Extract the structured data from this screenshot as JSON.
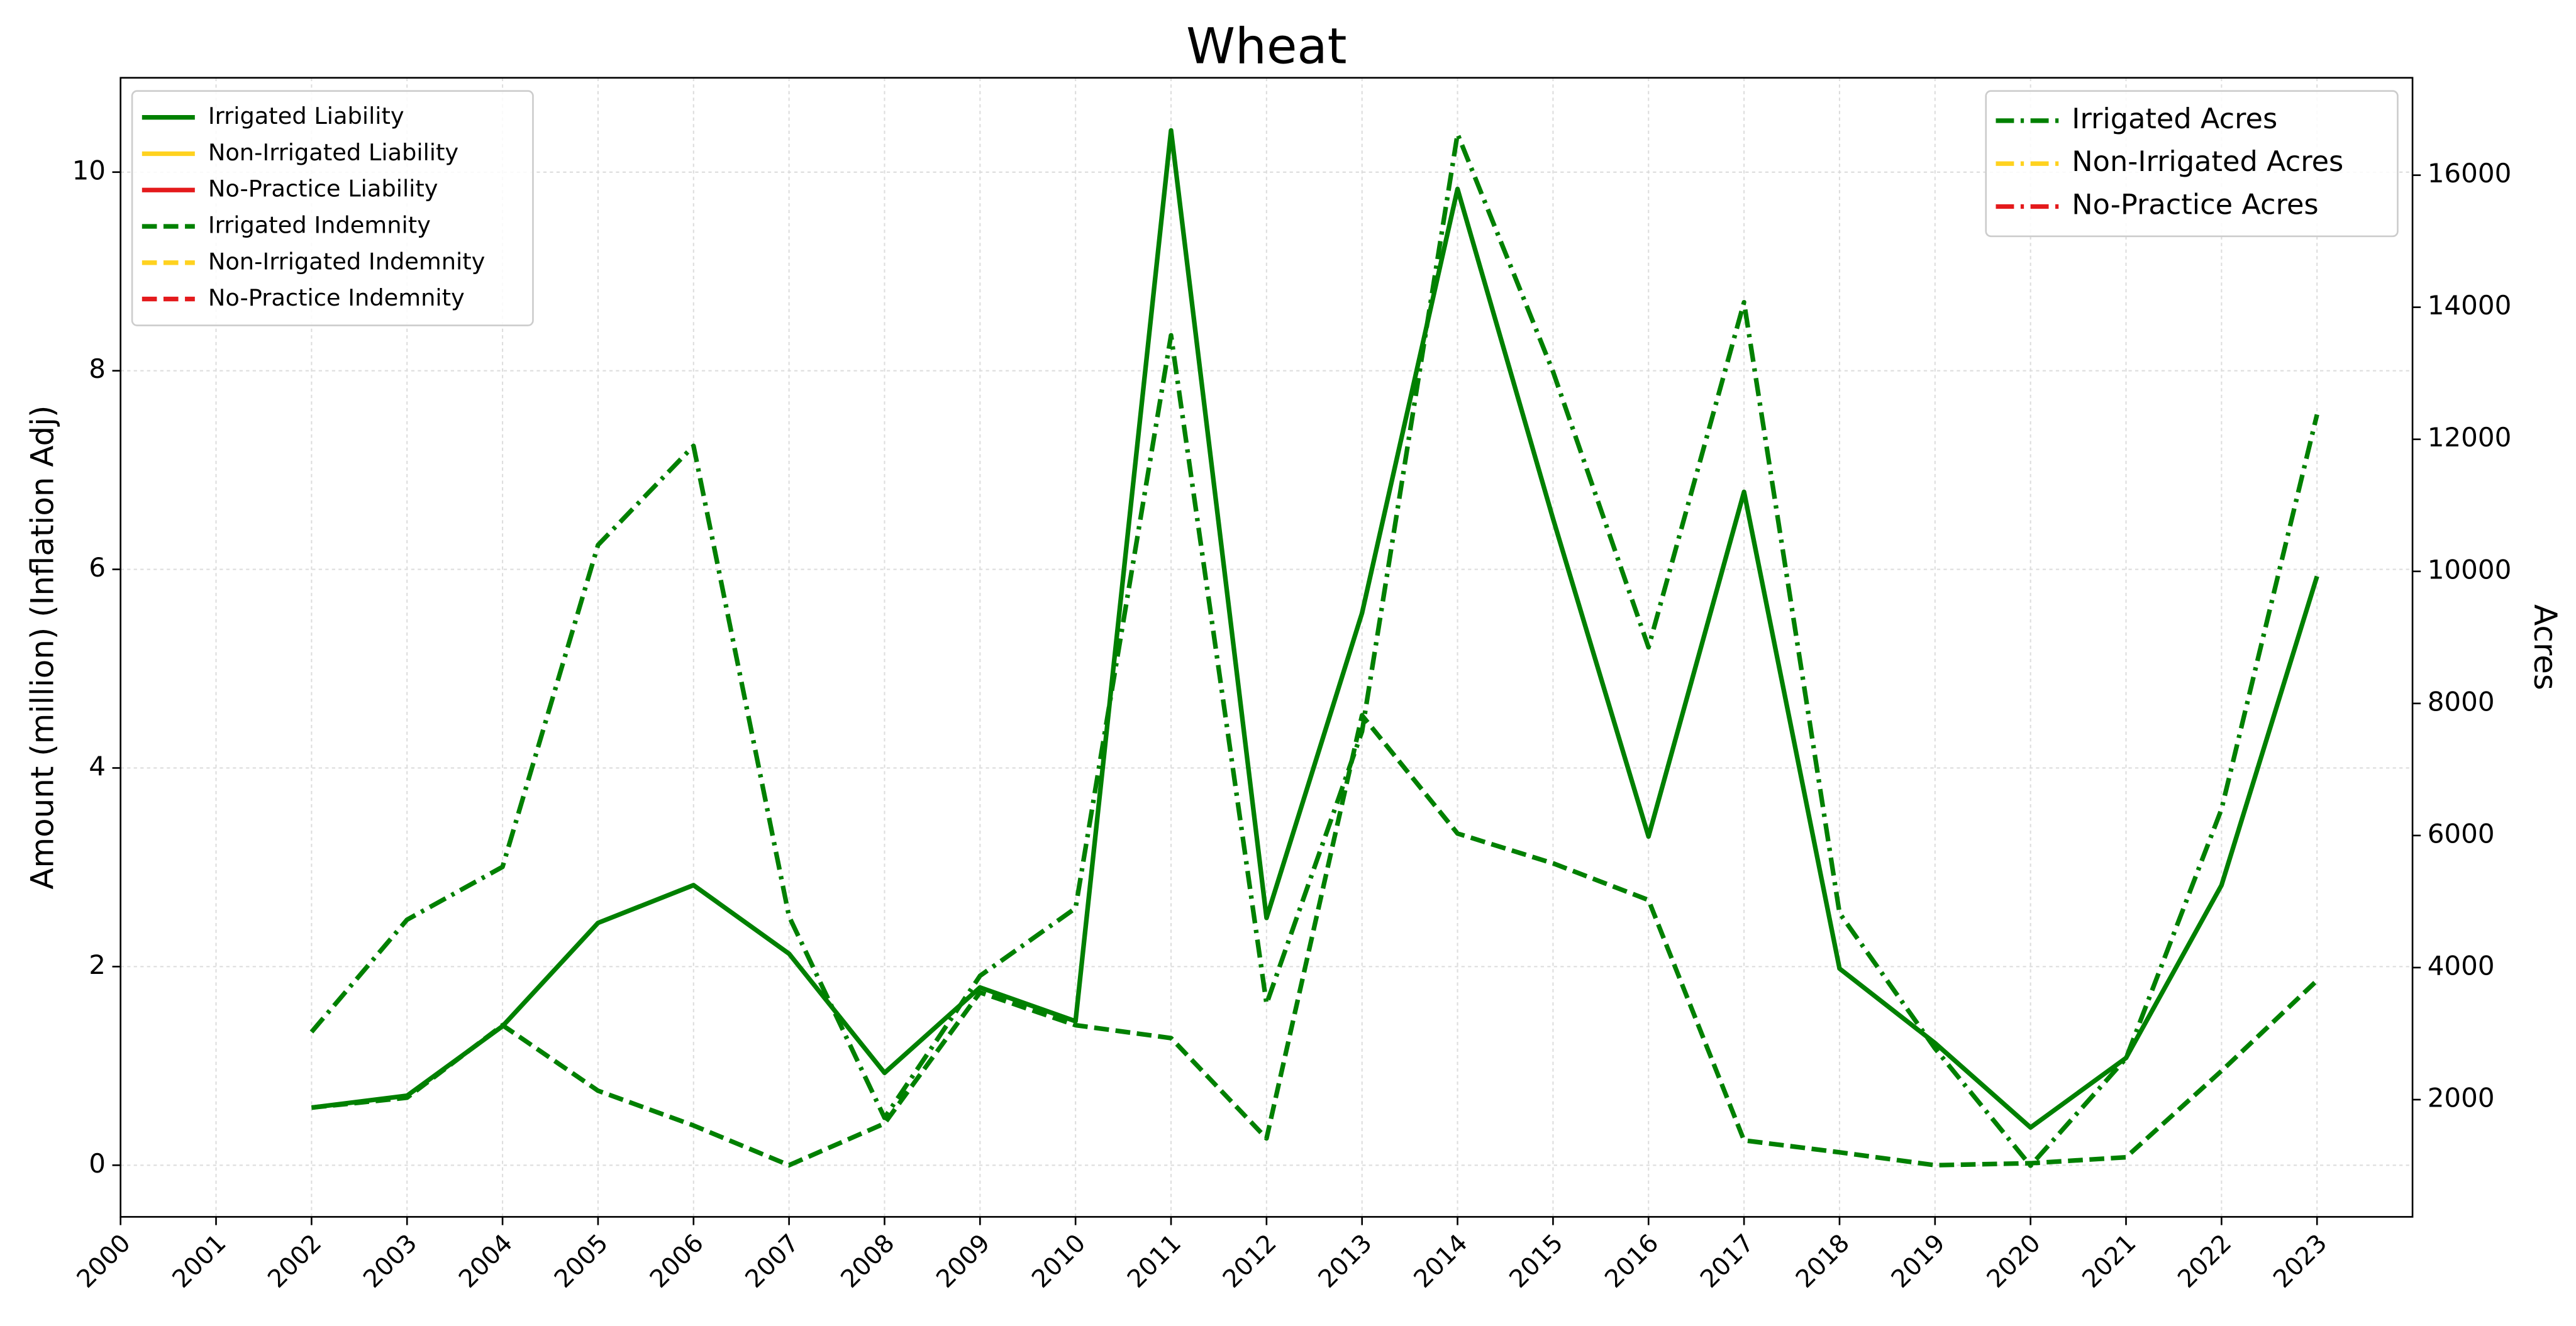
{
  "chart_data": {
    "type": "line",
    "title": "Wheat",
    "ylabel": "Amount (million) (Inflation Adj)",
    "y2label": "Acres",
    "x": [
      2002,
      2003,
      2004,
      2005,
      2006,
      2007,
      2008,
      2009,
      2010,
      2011,
      2012,
      2013,
      2014,
      2015,
      2016,
      2017,
      2018,
      2019,
      2020,
      2021,
      2022,
      2023
    ],
    "xlim": [
      2000,
      2024
    ],
    "xticks": [
      2000,
      2001,
      2002,
      2003,
      2004,
      2005,
      2006,
      2007,
      2008,
      2009,
      2010,
      2011,
      2012,
      2013,
      2014,
      2015,
      2016,
      2017,
      2018,
      2019,
      2020,
      2021,
      2022,
      2023
    ],
    "ylim": [
      -0.52,
      10.95
    ],
    "yticks": [
      0,
      2,
      4,
      6,
      8,
      10
    ],
    "y2lim": [
      225,
      17475
    ],
    "y2ticks": [
      2000,
      4000,
      6000,
      8000,
      10000,
      12000,
      14000,
      16000
    ],
    "grid": true,
    "legend": "upper left",
    "legend2": "upper right",
    "series": [
      {
        "name": "Irrigated Liability",
        "color": "#008000",
        "linestyle": "solid",
        "values": [
          0.58,
          0.7,
          1.4,
          2.44,
          2.82,
          2.13,
          0.93,
          1.79,
          1.45,
          10.42,
          2.49,
          5.56,
          9.83,
          6.51,
          3.31,
          6.78,
          1.98,
          1.23,
          0.38,
          1.08,
          2.82,
          5.93
        ]
      },
      {
        "name": "Non-Irrigated Liability",
        "color": "#ffd21f",
        "linestyle": "solid",
        "values": [
          null,
          null,
          null,
          null,
          null,
          null,
          null,
          null,
          null,
          null,
          null,
          null,
          null,
          null,
          null,
          null,
          null,
          null,
          null,
          null,
          null,
          null
        ]
      },
      {
        "name": "No-Practice Liability",
        "color": "#e41a1c",
        "linestyle": "solid",
        "values": [
          null,
          null,
          null,
          null,
          null,
          null,
          null,
          null,
          null,
          null,
          null,
          null,
          null,
          null,
          null,
          null,
          null,
          null,
          null,
          null,
          null,
          null
        ]
      },
      {
        "name": "Irrigated Indemnity",
        "color": "#008000",
        "linestyle": "dashed",
        "values": [
          0.58,
          0.68,
          1.41,
          0.75,
          0.4,
          0.0,
          0.42,
          1.74,
          1.41,
          1.28,
          0.27,
          4.53,
          3.34,
          3.04,
          2.67,
          0.25,
          0.13,
          0.0,
          0.02,
          0.08,
          0.95,
          1.86
        ]
      },
      {
        "name": "Non-Irrigated Indemnity",
        "color": "#ffd21f",
        "linestyle": "dashed",
        "values": [
          null,
          null,
          null,
          null,
          null,
          null,
          null,
          null,
          null,
          null,
          null,
          null,
          null,
          null,
          null,
          null,
          null,
          null,
          null,
          null,
          null,
          null
        ]
      },
      {
        "name": "No-Practice Indemnity",
        "color": "#e41a1c",
        "linestyle": "dashed",
        "values": [
          null,
          null,
          null,
          null,
          null,
          null,
          null,
          null,
          null,
          null,
          null,
          null,
          null,
          null,
          null,
          null,
          null,
          null,
          null,
          null,
          null,
          null
        ]
      },
      {
        "name": "Irrigated Acres",
        "color": "#008000",
        "linestyle": "dashdot",
        "axis": "y2",
        "values": [
          3025,
          4725,
          5525,
          10400,
          11900,
          4775,
          1725,
          3875,
          4900,
          13575,
          3450,
          7575,
          16625,
          13025,
          8850,
          14075,
          4825,
          2775,
          1000,
          2625,
          6400,
          12375
        ]
      },
      {
        "name": "Non-Irrigated Acres",
        "color": "#ffd21f",
        "linestyle": "dashdot",
        "axis": "y2",
        "values": [
          null,
          null,
          null,
          null,
          null,
          null,
          null,
          null,
          null,
          null,
          null,
          null,
          null,
          null,
          null,
          null,
          null,
          null,
          null,
          null,
          null,
          null
        ]
      },
      {
        "name": "No-Practice Acres",
        "color": "#e41a1c",
        "linestyle": "dashdot",
        "axis": "y2",
        "values": [
          null,
          null,
          null,
          null,
          null,
          null,
          null,
          null,
          null,
          null,
          null,
          null,
          null,
          null,
          null,
          null,
          null,
          null,
          null,
          null,
          null,
          null
        ]
      }
    ]
  }
}
